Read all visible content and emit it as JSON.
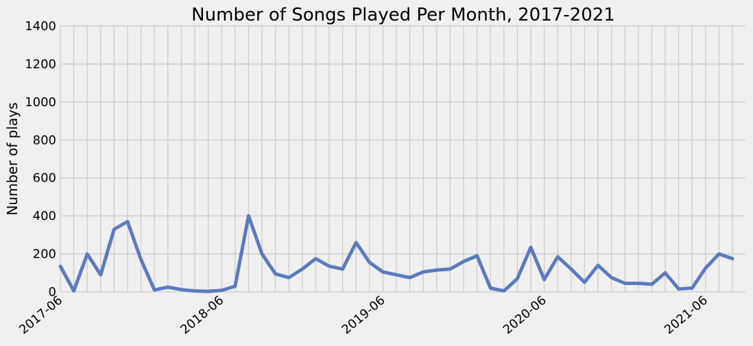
{
  "chart_data": {
    "type": "line",
    "title": "Number of Songs Played Per Month, 2017-2021",
    "xlabel": "",
    "ylabel": "Number of plays",
    "ylim": [
      0,
      1400
    ],
    "y_ticks": [
      0,
      200,
      400,
      600,
      800,
      1000,
      1200,
      1400
    ],
    "x_tick_labels": [
      "2017-06",
      "2018-06",
      "2019-06",
      "2020-06",
      "2021-06"
    ],
    "x_start": "2017-06",
    "x_end": "2021-08",
    "grid": true,
    "line_color": "#5b7bbd",
    "series": [
      {
        "x": [
          "2017-06",
          "2017-07",
          "2017-08",
          "2017-09",
          "2017-10",
          "2017-11",
          "2017-12",
          "2018-01",
          "2018-02",
          "2018-03",
          "2018-04",
          "2018-05",
          "2018-06",
          "2018-07",
          "2018-08",
          "2018-09",
          "2018-10",
          "2018-11",
          "2018-12",
          "2019-01",
          "2019-02",
          "2019-03",
          "2019-04",
          "2019-05",
          "2019-06",
          "2019-07",
          "2019-08",
          "2019-09",
          "2019-10",
          "2019-11",
          "2019-12",
          "2020-01",
          "2020-02",
          "2020-03",
          "2020-04",
          "2020-05",
          "2020-06",
          "2020-07",
          "2020-08",
          "2020-09",
          "2020-10",
          "2020-11",
          "2020-12",
          "2021-01",
          "2021-02",
          "2021-03",
          "2021-04",
          "2021-05",
          "2021-06",
          "2021-07",
          "2021-08"
        ],
        "values": [
          135,
          5,
          200,
          90,
          330,
          370,
          170,
          10,
          25,
          12,
          5,
          3,
          8,
          30,
          400,
          200,
          95,
          75,
          120,
          175,
          135,
          120,
          260,
          155,
          105,
          90,
          75,
          105,
          115,
          120,
          160,
          190,
          20,
          5,
          70,
          235,
          65,
          185,
          120,
          50,
          140,
          75,
          45,
          45,
          40,
          100,
          15,
          20,
          125,
          200,
          175
        ]
      }
    ]
  }
}
